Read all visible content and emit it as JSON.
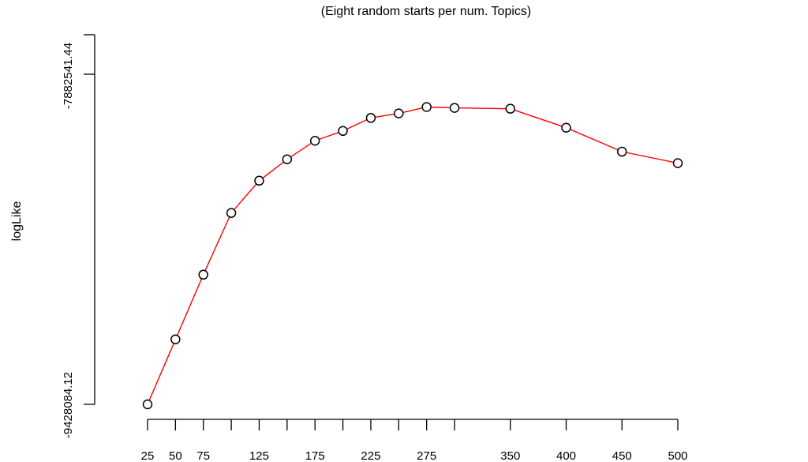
{
  "chart_data": {
    "type": "line",
    "title": "(Eight random starts per num. Topics)",
    "xlabel": "",
    "ylabel": "logLike",
    "x": [
      25,
      50,
      75,
      100,
      125,
      150,
      175,
      200,
      225,
      250,
      275,
      300,
      350,
      400,
      450,
      500
    ],
    "x_tick_labels": [
      "25",
      "50",
      "75",
      "125",
      "175",
      "225",
      "275",
      "350",
      "400",
      "450",
      "500"
    ],
    "y_tick_labels": [
      "-7882541.44",
      "-9428084.12"
    ],
    "y_ticks": [
      -7882541.44,
      -9428084.12
    ],
    "series": [
      {
        "values": [
          -9428084.12,
          -9124000,
          -8821000,
          -8532000,
          -8381000,
          -8281000,
          -8194000,
          -8148000,
          -8087000,
          -8066000,
          -8036000,
          -8040000,
          -8044000,
          -8133000,
          -8245000,
          -8299000
        ],
        "color": "#ff0000",
        "marker": "open-circle"
      }
    ]
  }
}
